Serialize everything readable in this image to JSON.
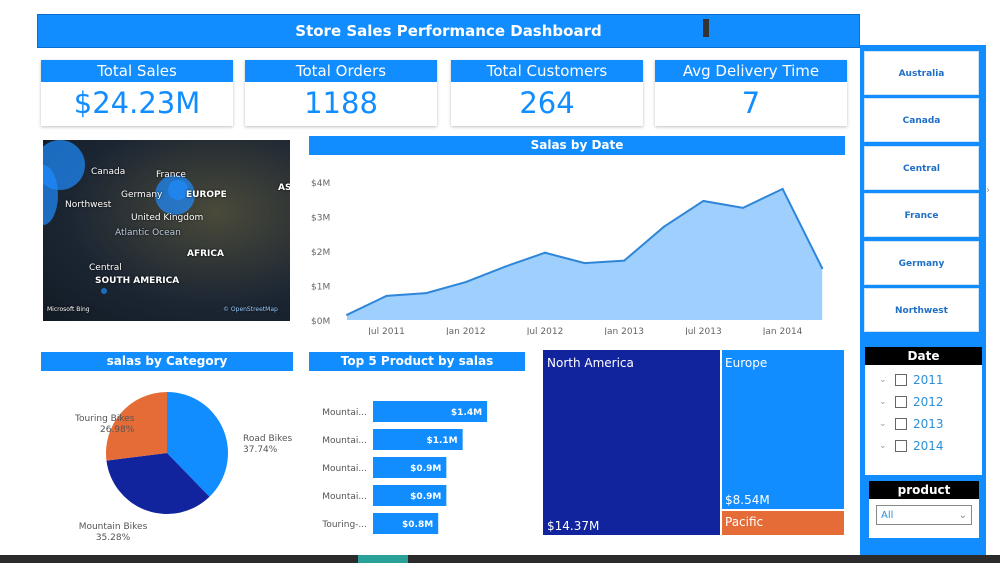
{
  "title": "Store Sales Performance Dashboard",
  "kpis": [
    {
      "label": "Total Sales",
      "value": "$24.23M"
    },
    {
      "label": "Total Orders",
      "value": "1188"
    },
    {
      "label": "Total Customers",
      "value": "264"
    },
    {
      "label": "Avg Delivery Time",
      "value": "7"
    }
  ],
  "map": {
    "labels": [
      "Canada",
      "France",
      "Germany",
      "EUROPE",
      "Northwest",
      "United Kingdom",
      "Atlantic Ocean",
      "AFRICA",
      "Central",
      "SOUTH AMERICA",
      "ASI"
    ],
    "attribution": "Microsoft Bing",
    "credit": "© OpenStreetMap"
  },
  "regions": [
    "Australia",
    "Canada",
    "Central",
    "France",
    "Germany",
    "Northwest"
  ],
  "date_slicer": {
    "title": "Date",
    "years": [
      "2011",
      "2012",
      "2013",
      "2014"
    ]
  },
  "product_slicer": {
    "title": "product",
    "value": "All"
  },
  "chart_data": [
    {
      "type": "area",
      "title": "Salas by Date",
      "x": [
        "Apr 2011",
        "Jul 2011",
        "Oct 2011",
        "Jan 2012",
        "Apr 2012",
        "Jul 2012",
        "Oct 2012",
        "Jan 2013",
        "Apr 2013",
        "Jul 2013",
        "Oct 2013",
        "Jan 2014",
        "Apr 2014"
      ],
      "values": [
        0.15,
        0.7,
        0.78,
        1.1,
        1.55,
        1.95,
        1.65,
        1.72,
        2.7,
        3.45,
        3.25,
        3.8,
        1.5
      ],
      "yticks": [
        "$0M",
        "$1M",
        "$2M",
        "$3M",
        "$4M"
      ],
      "xticks": [
        "Jul 2011",
        "Jan 2012",
        "Jul 2012",
        "Jan 2013",
        "Jul 2013",
        "Jan 2014"
      ],
      "ylim": [
        0,
        4
      ],
      "unit": "$M",
      "color": "#9fcffc",
      "line_color": "#2f86d8"
    },
    {
      "type": "pie",
      "title": "salas by Category",
      "slices": [
        {
          "name": "Road Bikes",
          "value": 37.74,
          "label": "37.74%",
          "color": "#118dff"
        },
        {
          "name": "Mountain Bikes",
          "value": 35.28,
          "label": "35.28%",
          "color": "#12239e"
        },
        {
          "name": "Touring Bikes",
          "value": 26.98,
          "label": "26.98%",
          "color": "#e66c37"
        }
      ]
    },
    {
      "type": "bar",
      "title": "Top 5 Product by salas",
      "categories": [
        "Mountai...",
        "Mountai...",
        "Mountai...",
        "Mountai...",
        "Touring-..."
      ],
      "values": [
        1.4,
        1.1,
        0.9,
        0.9,
        0.8
      ],
      "labels": [
        "$1.4M",
        "$1.1M",
        "$0.9M",
        "$0.9M",
        "$0.8M"
      ]
    },
    {
      "type": "treemap",
      "items": [
        {
          "name": "North America",
          "value": 14.37,
          "label": "$14.37M",
          "color": "#12239e"
        },
        {
          "name": "Europe",
          "value": 8.54,
          "label": "$8.54M",
          "color": "#118dff"
        },
        {
          "name": "Pacific",
          "label": "",
          "color": "#e66c37"
        }
      ]
    }
  ]
}
